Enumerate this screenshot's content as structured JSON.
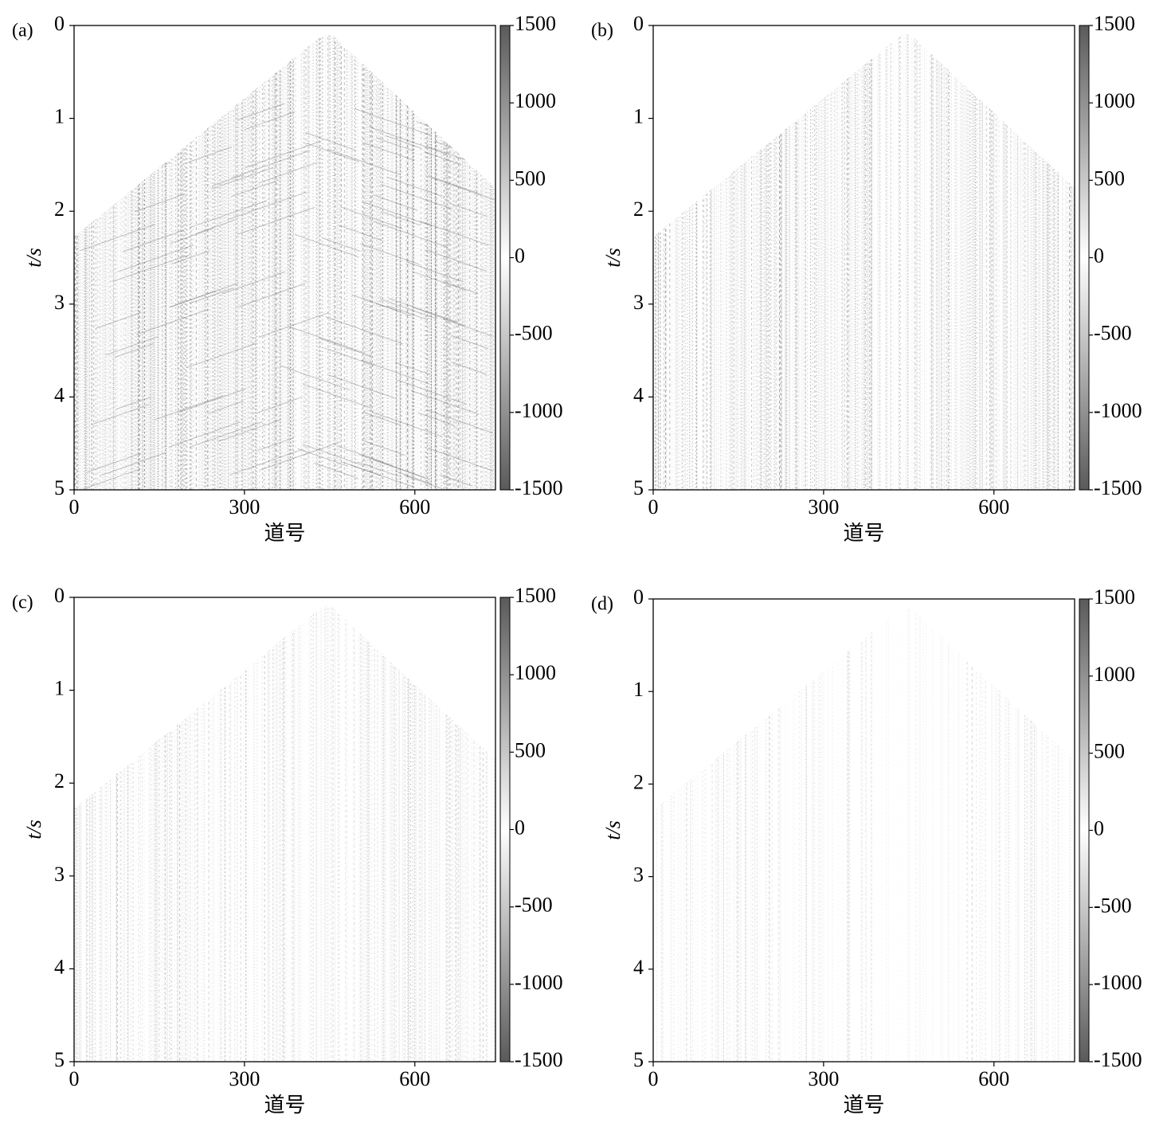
{
  "chart_data": [
    {
      "type": "seismic",
      "panel_label": "(a)",
      "xlabel": "道号",
      "ylabel": "t/s",
      "xlim": [
        0,
        742
      ],
      "xticks": [
        0,
        300,
        600
      ],
      "ylim": [
        0,
        5
      ],
      "yticks": [
        0,
        1,
        2,
        3,
        4,
        5
      ],
      "y_inverted": true,
      "clim": [
        -1500,
        1500
      ],
      "cticks": [
        -1500,
        -1000,
        -500,
        0,
        500,
        1000,
        1500
      ],
      "colormap": [
        "#5a5a5a",
        "#ffffff",
        "#5a5a5a"
      ]
    },
    {
      "type": "seismic",
      "panel_label": "(b)",
      "xlabel": "道号",
      "ylabel": "t/s",
      "xlim": [
        0,
        742
      ],
      "xticks": [
        0,
        300,
        600
      ],
      "ylim": [
        0,
        5
      ],
      "yticks": [
        0,
        1,
        2,
        3,
        4,
        5
      ],
      "y_inverted": true,
      "clim": [
        -1500,
        1500
      ],
      "cticks": [
        -1500,
        -1000,
        -500,
        0,
        500,
        1000,
        1500
      ],
      "colormap": [
        "#5a5a5a",
        "#ffffff",
        "#5a5a5a"
      ]
    },
    {
      "type": "seismic",
      "panel_label": "(c)",
      "xlabel": "道号",
      "ylabel": "t/s",
      "xlim": [
        0,
        742
      ],
      "xticks": [
        0,
        300,
        600
      ],
      "ylim": [
        0,
        5
      ],
      "yticks": [
        0,
        1,
        2,
        3,
        4,
        5
      ],
      "y_inverted": true,
      "clim": [
        -1500,
        1500
      ],
      "cticks": [
        -1500,
        -1000,
        -500,
        0,
        500,
        1000,
        1500
      ],
      "colormap": [
        "#5a5a5a",
        "#ffffff",
        "#5a5a5a"
      ]
    },
    {
      "type": "seismic",
      "panel_label": "(d)",
      "xlabel": "道号",
      "ylabel": "t/s",
      "xlim": [
        0,
        742
      ],
      "xticks": [
        0,
        300,
        600
      ],
      "ylim": [
        0,
        5
      ],
      "yticks": [
        0,
        1,
        2,
        3,
        4,
        5
      ],
      "y_inverted": true,
      "clim": [
        -1500,
        1500
      ],
      "cticks": [
        -1500,
        -1000,
        -500,
        0,
        500,
        1000,
        1500
      ],
      "colormap": [
        "#5a5a5a",
        "#ffffff",
        "#5a5a5a"
      ]
    }
  ]
}
